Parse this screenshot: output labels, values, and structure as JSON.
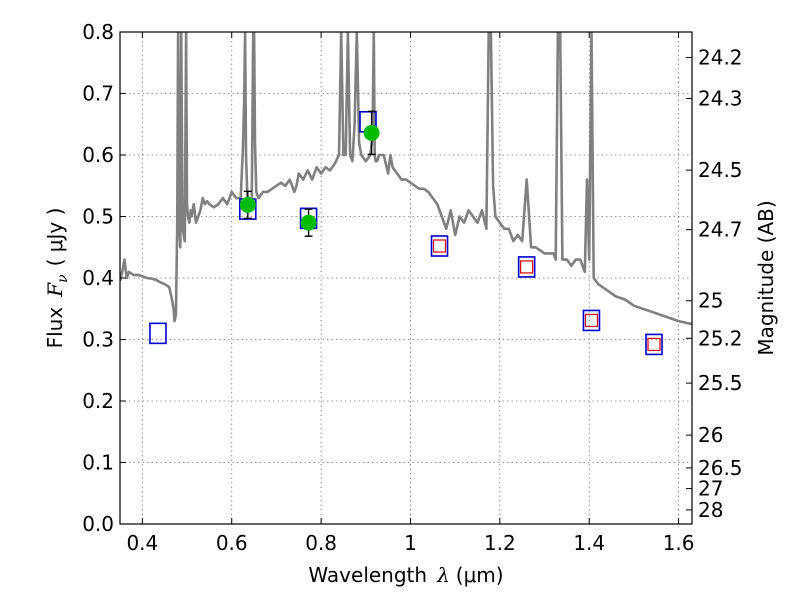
{
  "chart_data": {
    "type": "scatter",
    "xlabel_text": "Wavelength",
    "xlabel_symbol": "λ",
    "xlabel_unit": "(μm)",
    "ylabel_text": "Flux",
    "ylabel_symbol": "F",
    "ylabel_subscript": "ν",
    "ylabel_unit": "( μJy )",
    "y2label": "Magnitude (AB)",
    "xlim": [
      0.35,
      1.63
    ],
    "ylim": [
      0.0,
      0.8
    ],
    "grid": true,
    "x_ticks": [
      0.4,
      0.6,
      0.8,
      1.0,
      1.2,
      1.4,
      1.6
    ],
    "x_tick_labels": [
      "0.4",
      "0.6",
      "0.8",
      "1",
      "1.2",
      "1.4",
      "1.6"
    ],
    "y_ticks": [
      0.0,
      0.1,
      0.2,
      0.3,
      0.4,
      0.5,
      0.6,
      0.7,
      0.8
    ],
    "y_tick_labels": [
      "0.0",
      "0.1",
      "0.2",
      "0.3",
      "0.4",
      "0.5",
      "0.6",
      "0.7",
      "0.8"
    ],
    "mag_ticks": [
      "24.2",
      "24.3",
      "24.5",
      "24.7",
      "25",
      "25.2",
      "25.5",
      "26",
      "26.5",
      "27",
      "28"
    ],
    "colors": {
      "spectrum": "#808080",
      "observed": "#00bb00",
      "model_box": "#0000cc",
      "model_inner": "#dd0000",
      "errorbar": "#000000",
      "grid": "#777777"
    },
    "series": [
      {
        "type": "line",
        "x": [
          0.35,
          0.355,
          0.36,
          0.365,
          0.37,
          0.38,
          0.39,
          0.4,
          0.41,
          0.42,
          0.43,
          0.44,
          0.45,
          0.46,
          0.465,
          0.47,
          0.472,
          0.475,
          0.478,
          0.48,
          0.483,
          0.485,
          0.487,
          0.49,
          0.495,
          0.498,
          0.5,
          0.502,
          0.505,
          0.508,
          0.51,
          0.515,
          0.52,
          0.525,
          0.53,
          0.535,
          0.54,
          0.545,
          0.55,
          0.56,
          0.57,
          0.58,
          0.59,
          0.6,
          0.61,
          0.62,
          0.625,
          0.628,
          0.63,
          0.632,
          0.635,
          0.64,
          0.645,
          0.648,
          0.65,
          0.652,
          0.655,
          0.66,
          0.67,
          0.68,
          0.69,
          0.7,
          0.71,
          0.72,
          0.73,
          0.74,
          0.745,
          0.75,
          0.76,
          0.77,
          0.78,
          0.79,
          0.8,
          0.81,
          0.82,
          0.83,
          0.84,
          0.845,
          0.85,
          0.855,
          0.86,
          0.865,
          0.87,
          0.875,
          0.88,
          0.885,
          0.89,
          0.9,
          0.91,
          0.915,
          0.918,
          0.92,
          0.922,
          0.925,
          0.93,
          0.94,
          0.95,
          0.955,
          0.96,
          0.97,
          0.98,
          0.99,
          1.0,
          1.01,
          1.02,
          1.03,
          1.04,
          1.05,
          1.06,
          1.07,
          1.08,
          1.09,
          1.1,
          1.11,
          1.12,
          1.13,
          1.14,
          1.15,
          1.16,
          1.17,
          1.175,
          1.18,
          1.185,
          1.19,
          1.2,
          1.21,
          1.22,
          1.23,
          1.24,
          1.25,
          1.26,
          1.27,
          1.28,
          1.29,
          1.3,
          1.31,
          1.32,
          1.325,
          1.33,
          1.335,
          1.34,
          1.35,
          1.36,
          1.37,
          1.38,
          1.39,
          1.395,
          1.4,
          1.405,
          1.41,
          1.42,
          1.43,
          1.44,
          1.45,
          1.46,
          1.48,
          1.5,
          1.52,
          1.54,
          1.56,
          1.58,
          1.6,
          1.63
        ],
        "y": [
          0.395,
          0.41,
          0.43,
          0.4,
          0.41,
          0.405,
          0.405,
          0.403,
          0.4,
          0.399,
          0.397,
          0.393,
          0.39,
          0.385,
          0.37,
          0.35,
          0.33,
          0.34,
          0.48,
          0.8,
          0.48,
          0.45,
          0.8,
          0.48,
          0.46,
          0.8,
          0.52,
          0.5,
          0.49,
          0.51,
          0.5,
          0.52,
          0.49,
          0.5,
          0.51,
          0.53,
          0.52,
          0.525,
          0.52,
          0.515,
          0.52,
          0.53,
          0.52,
          0.54,
          0.53,
          0.53,
          0.61,
          0.69,
          0.8,
          0.6,
          0.53,
          0.52,
          0.53,
          0.8,
          0.8,
          0.62,
          0.54,
          0.53,
          0.54,
          0.54,
          0.545,
          0.55,
          0.555,
          0.55,
          0.56,
          0.54,
          0.55,
          0.57,
          0.56,
          0.575,
          0.56,
          0.58,
          0.57,
          0.58,
          0.575,
          0.585,
          0.6,
          0.8,
          0.6,
          0.6,
          0.8,
          0.6,
          0.59,
          0.65,
          0.8,
          0.62,
          0.6,
          0.59,
          0.6,
          0.63,
          0.8,
          0.6,
          0.59,
          0.59,
          0.6,
          0.6,
          0.57,
          0.6,
          0.58,
          0.57,
          0.56,
          0.56,
          0.555,
          0.55,
          0.545,
          0.545,
          0.54,
          0.53,
          0.52,
          0.5,
          0.48,
          0.51,
          0.47,
          0.5,
          0.49,
          0.51,
          0.5,
          0.49,
          0.51,
          0.48,
          0.8,
          0.8,
          0.55,
          0.5,
          0.49,
          0.48,
          0.48,
          0.46,
          0.47,
          0.46,
          0.56,
          0.45,
          0.45,
          0.445,
          0.44,
          0.44,
          0.44,
          0.43,
          0.8,
          0.8,
          0.43,
          0.43,
          0.42,
          0.43,
          0.43,
          0.41,
          0.56,
          0.43,
          0.8,
          0.4,
          0.39,
          0.385,
          0.38,
          0.375,
          0.37,
          0.365,
          0.355,
          0.35,
          0.345,
          0.34,
          0.335,
          0.33,
          0.325
        ]
      },
      {
        "type": "scatter",
        "marker": "circle",
        "x": [
          0.636,
          0.772,
          0.913
        ],
        "y": [
          0.519,
          0.49,
          0.636
        ],
        "yerr": [
          0.022,
          0.022,
          0.035
        ]
      },
      {
        "type": "scatter",
        "marker": "open-square",
        "x": [
          0.435,
          0.636,
          0.772,
          0.905,
          1.065,
          1.26,
          1.405,
          1.545
        ],
        "y": [
          0.31,
          0.512,
          0.497,
          0.654,
          0.452,
          0.418,
          0.331,
          0.292
        ]
      },
      {
        "type": "scatter",
        "marker": "small-square",
        "x": [
          1.065,
          1.26,
          1.405,
          1.545
        ],
        "y": [
          0.452,
          0.418,
          0.331,
          0.292
        ]
      }
    ]
  }
}
